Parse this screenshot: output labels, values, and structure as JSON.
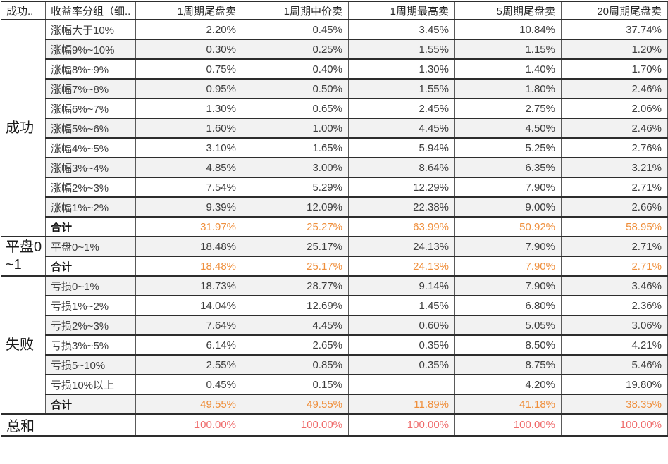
{
  "colors": {
    "subtotal_text": "#EF8F3C",
    "grand_total_text": "#EF6B6B",
    "row_stripe": "#F2F2F2"
  },
  "chart_data": {
    "type": "table",
    "columns": [
      "成功..",
      "收益率分组（细..",
      "1周期尾盘卖",
      "1周期中价卖",
      "1周期最高卖",
      "5周期尾盘卖",
      "20周期尾盘卖"
    ],
    "groups": [
      {
        "label": "成功",
        "rows": [
          {
            "label": "涨幅大于10%",
            "values": [
              "2.20%",
              "0.45%",
              "3.45%",
              "10.84%",
              "37.74%"
            ]
          },
          {
            "label": "涨幅9%~10%",
            "values": [
              "0.30%",
              "0.25%",
              "1.55%",
              "1.15%",
              "1.20%"
            ]
          },
          {
            "label": "涨幅8%~9%",
            "values": [
              "0.75%",
              "0.40%",
              "1.30%",
              "1.40%",
              "1.70%"
            ]
          },
          {
            "label": "涨幅7%~8%",
            "values": [
              "0.95%",
              "0.50%",
              "1.55%",
              "1.80%",
              "2.46%"
            ]
          },
          {
            "label": "涨幅6%~7%",
            "values": [
              "1.30%",
              "0.65%",
              "2.45%",
              "2.75%",
              "2.06%"
            ]
          },
          {
            "label": "涨幅5%~6%",
            "values": [
              "1.60%",
              "1.00%",
              "4.45%",
              "4.50%",
              "2.46%"
            ]
          },
          {
            "label": "涨幅4%~5%",
            "values": [
              "3.10%",
              "1.65%",
              "5.94%",
              "5.25%",
              "2.76%"
            ]
          },
          {
            "label": "涨幅3%~4%",
            "values": [
              "4.85%",
              "3.00%",
              "8.64%",
              "6.35%",
              "3.21%"
            ]
          },
          {
            "label": "涨幅2%~3%",
            "values": [
              "7.54%",
              "5.29%",
              "12.29%",
              "7.90%",
              "2.71%"
            ]
          },
          {
            "label": "涨幅1%~2%",
            "values": [
              "9.39%",
              "12.09%",
              "22.38%",
              "9.00%",
              "2.66%"
            ]
          },
          {
            "label": "合计",
            "is_subtotal": true,
            "values": [
              "31.97%",
              "25.27%",
              "63.99%",
              "50.92%",
              "58.95%"
            ]
          }
        ]
      },
      {
        "label": "平盘0~1",
        "rows": [
          {
            "label": "平盘0~1%",
            "values": [
              "18.48%",
              "25.17%",
              "24.13%",
              "7.90%",
              "2.71%"
            ]
          },
          {
            "label": "合计",
            "is_subtotal": true,
            "values": [
              "18.48%",
              "25.17%",
              "24.13%",
              "7.90%",
              "2.71%"
            ]
          }
        ]
      },
      {
        "label": "失败",
        "rows": [
          {
            "label": "亏损0~1%",
            "values": [
              "18.73%",
              "28.77%",
              "9.14%",
              "7.90%",
              "3.46%"
            ]
          },
          {
            "label": "亏损1%~2%",
            "values": [
              "14.04%",
              "12.69%",
              "1.45%",
              "6.80%",
              "2.36%"
            ]
          },
          {
            "label": "亏损2%~3%",
            "values": [
              "7.64%",
              "4.45%",
              "0.60%",
              "5.05%",
              "3.06%"
            ]
          },
          {
            "label": "亏损3%~5%",
            "values": [
              "6.14%",
              "2.65%",
              "0.35%",
              "8.50%",
              "4.21%"
            ]
          },
          {
            "label": "亏损5~10%",
            "values": [
              "2.55%",
              "0.85%",
              "0.35%",
              "8.75%",
              "5.46%"
            ]
          },
          {
            "label": "亏损10%以上",
            "values": [
              "0.45%",
              "0.15%",
              "",
              "4.20%",
              "19.80%"
            ]
          },
          {
            "label": "合计",
            "is_subtotal": true,
            "values": [
              "49.55%",
              "49.55%",
              "11.89%",
              "41.18%",
              "38.35%"
            ]
          }
        ]
      }
    ],
    "grand_total": {
      "label": "总和",
      "values": [
        "100.00%",
        "100.00%",
        "100.00%",
        "100.00%",
        "100.00%"
      ]
    }
  }
}
